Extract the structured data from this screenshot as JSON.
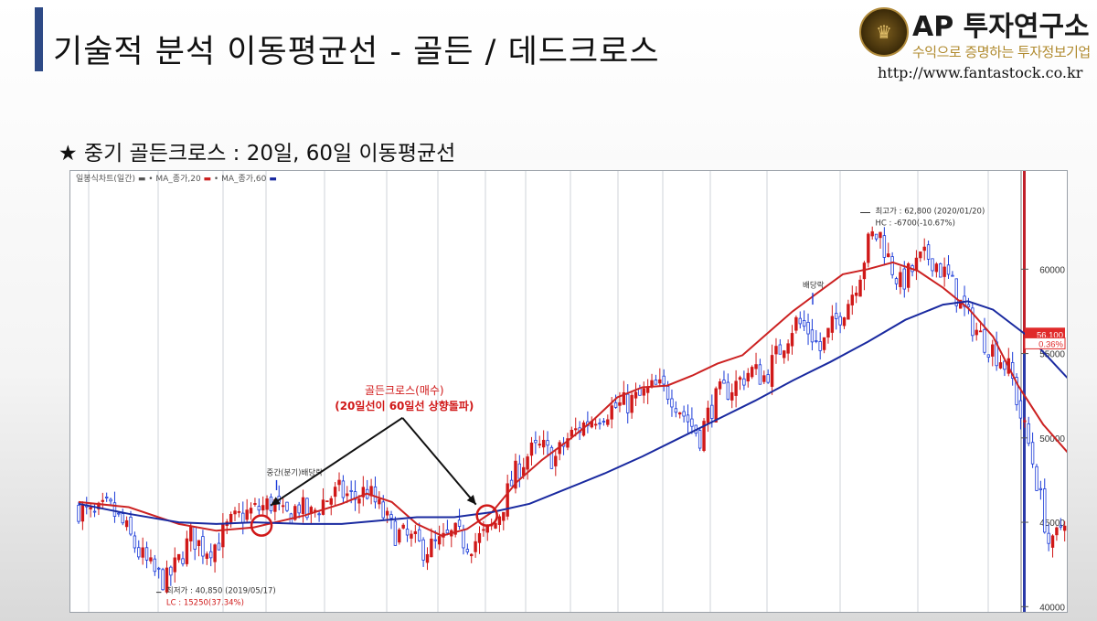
{
  "header": {
    "title": "기술적 분석 이동평균선 - 골든 / 데드크로스",
    "subtitle": "★ 중기 골든크로스 : 20일, 60일 이동평균선"
  },
  "logo": {
    "brand": "AP 투자연구소",
    "tagline": "수익으로 증명하는 투자정보기업",
    "url": "http://www.fantastock.co.kr"
  },
  "colors": {
    "title_accent": "#2e4a86",
    "ma20": "#cc2222",
    "ma60": "#1a2aa0",
    "candle_up": "#d01818",
    "candle_down": "#1a3ad8",
    "annotation_red": "#d01818"
  },
  "chart_data": {
    "type": "candlestick",
    "legend": [
      "일봉식차트(일간)",
      "MA_종가,20",
      "MA_종가,60"
    ],
    "y_axis": {
      "side": "right",
      "ticks": [
        40000,
        45000,
        50000,
        55000,
        60000
      ],
      "tick_labels": [
        "40000",
        "45000",
        "50000",
        "55000",
        "60000"
      ],
      "ylim": [
        39800,
        65600
      ]
    },
    "n_days": 370,
    "series": [
      {
        "name": "MA_종가,20",
        "color": "#cc2222",
        "points": [
          [
            0,
            46200
          ],
          [
            20,
            45900
          ],
          [
            40,
            44900
          ],
          [
            55,
            44500
          ],
          [
            70,
            44700
          ],
          [
            90,
            45400
          ],
          [
            105,
            46100
          ],
          [
            115,
            46700
          ],
          [
            125,
            46200
          ],
          [
            135,
            44900
          ],
          [
            145,
            44200
          ],
          [
            155,
            44600
          ],
          [
            165,
            45600
          ],
          [
            175,
            47400
          ],
          [
            185,
            48700
          ],
          [
            195,
            49800
          ],
          [
            205,
            51000
          ],
          [
            215,
            52400
          ],
          [
            225,
            53000
          ],
          [
            235,
            53100
          ],
          [
            245,
            53700
          ],
          [
            255,
            54400
          ],
          [
            265,
            54900
          ],
          [
            275,
            56200
          ],
          [
            285,
            57500
          ],
          [
            295,
            58600
          ],
          [
            305,
            59700
          ],
          [
            315,
            60000
          ],
          [
            325,
            60400
          ],
          [
            335,
            59900
          ],
          [
            345,
            58900
          ],
          [
            355,
            57700
          ],
          [
            365,
            56000
          ],
          [
            375,
            53100
          ],
          [
            385,
            50800
          ],
          [
            395,
            49100
          ],
          [
            405,
            48400
          ],
          [
            415,
            48800
          ],
          [
            425,
            49000
          ],
          [
            435,
            49200
          ],
          [
            445,
            49400
          ],
          [
            455,
            50400
          ],
          [
            465,
            51200
          ],
          [
            475,
            51800
          ],
          [
            485,
            52100
          ],
          [
            495,
            52400
          ],
          [
            505,
            53300
          ],
          [
            515,
            53700
          ],
          [
            525,
            53900
          ],
          [
            535,
            54600
          ],
          [
            545,
            55400
          ],
          [
            555,
            56500
          ],
          [
            565,
            57700
          ],
          [
            575,
            57600
          ],
          [
            580,
            57200
          ]
        ]
      },
      {
        "name": "MA_종가,60",
        "color": "#1a2aa0",
        "points": [
          [
            0,
            46100
          ],
          [
            20,
            45500
          ],
          [
            40,
            45000
          ],
          [
            55,
            44900
          ],
          [
            70,
            45000
          ],
          [
            90,
            44900
          ],
          [
            105,
            44900
          ],
          [
            120,
            45100
          ],
          [
            135,
            45300
          ],
          [
            150,
            45300
          ],
          [
            165,
            45600
          ],
          [
            180,
            46100
          ],
          [
            195,
            47000
          ],
          [
            210,
            47900
          ],
          [
            225,
            48900
          ],
          [
            240,
            50000
          ],
          [
            255,
            51100
          ],
          [
            270,
            52200
          ],
          [
            285,
            53400
          ],
          [
            300,
            54500
          ],
          [
            315,
            55700
          ],
          [
            330,
            57000
          ],
          [
            345,
            57900
          ],
          [
            355,
            58100
          ],
          [
            365,
            57600
          ],
          [
            380,
            55900
          ],
          [
            395,
            53500
          ],
          [
            410,
            51300
          ],
          [
            425,
            49900
          ],
          [
            440,
            49200
          ],
          [
            455,
            49500
          ],
          [
            470,
            50300
          ],
          [
            485,
            51200
          ],
          [
            500,
            52000
          ],
          [
            515,
            52800
          ],
          [
            530,
            53600
          ],
          [
            545,
            54100
          ],
          [
            560,
            54900
          ],
          [
            575,
            55800
          ],
          [
            580,
            55700
          ]
        ]
      }
    ],
    "candle_path": [
      [
        0,
        45800
      ],
      [
        6,
        45300
      ],
      [
        12,
        45900
      ],
      [
        18,
        44800
      ],
      [
        24,
        43200
      ],
      [
        30,
        42000
      ],
      [
        35,
        41500
      ],
      [
        40,
        42700
      ],
      [
        45,
        44200
      ],
      [
        50,
        43400
      ],
      [
        55,
        43700
      ],
      [
        60,
        44800
      ],
      [
        65,
        45400
      ],
      [
        72,
        45800
      ],
      [
        78,
        46200
      ],
      [
        82,
        45200
      ],
      [
        88,
        46000
      ],
      [
        92,
        45300
      ],
      [
        98,
        46300
      ],
      [
        104,
        46800
      ],
      [
        110,
        46400
      ],
      [
        115,
        46900
      ],
      [
        120,
        45800
      ],
      [
        126,
        44400
      ],
      [
        132,
        44000
      ],
      [
        138,
        43400
      ],
      [
        144,
        43700
      ],
      [
        150,
        44300
      ],
      [
        156,
        43700
      ],
      [
        162,
        44200
      ],
      [
        166,
        44800
      ],
      [
        170,
        46300
      ],
      [
        175,
        48100
      ],
      [
        180,
        49100
      ],
      [
        185,
        49400
      ],
      [
        190,
        48700
      ],
      [
        195,
        49900
      ],
      [
        200,
        50600
      ],
      [
        206,
        51300
      ],
      [
        212,
        51700
      ],
      [
        218,
        52000
      ],
      [
        224,
        52400
      ],
      [
        230,
        53000
      ],
      [
        236,
        52700
      ],
      [
        242,
        51300
      ],
      [
        248,
        50100
      ],
      [
        252,
        51700
      ],
      [
        256,
        52600
      ],
      [
        262,
        53100
      ],
      [
        268,
        54000
      ],
      [
        274,
        53600
      ],
      [
        280,
        55300
      ],
      [
        286,
        56900
      ],
      [
        292,
        56300
      ],
      [
        296,
        55200
      ],
      [
        302,
        56900
      ],
      [
        308,
        58300
      ],
      [
        312,
        59900
      ],
      [
        316,
        61900
      ],
      [
        320,
        62000
      ],
      [
        324,
        60300
      ],
      [
        328,
        59100
      ],
      [
        332,
        59800
      ],
      [
        336,
        60500
      ],
      [
        340,
        60800
      ],
      [
        344,
        60000
      ],
      [
        348,
        59300
      ],
      [
        352,
        57900
      ],
      [
        356,
        56900
      ],
      [
        360,
        56000
      ],
      [
        364,
        55400
      ],
      [
        368,
        54700
      ],
      [
        372,
        53900
      ],
      [
        376,
        51300
      ],
      [
        380,
        49200
      ],
      [
        384,
        46300
      ],
      [
        388,
        43200
      ],
      [
        392,
        44800
      ],
      [
        396,
        46300
      ],
      [
        400,
        47800
      ],
      [
        404,
        49300
      ],
      [
        408,
        49700
      ],
      [
        412,
        49000
      ],
      [
        416,
        48700
      ],
      [
        420,
        49300
      ],
      [
        424,
        49600
      ],
      [
        428,
        49000
      ],
      [
        432,
        48300
      ],
      [
        436,
        48700
      ],
      [
        440,
        49200
      ],
      [
        444,
        49700
      ],
      [
        448,
        50200
      ],
      [
        452,
        50700
      ],
      [
        456,
        52900
      ],
      [
        460,
        55000
      ],
      [
        463,
        55800
      ],
      [
        466,
        54700
      ],
      [
        470,
        53000
      ],
      [
        474,
        52100
      ],
      [
        478,
        51700
      ],
      [
        482,
        52300
      ],
      [
        486,
        52600
      ],
      [
        490,
        52100
      ],
      [
        494,
        53100
      ],
      [
        498,
        53500
      ],
      [
        502,
        52900
      ],
      [
        506,
        53700
      ],
      [
        510,
        54400
      ],
      [
        514,
        54100
      ],
      [
        518,
        54900
      ],
      [
        522,
        54300
      ],
      [
        526,
        55100
      ],
      [
        530,
        54500
      ],
      [
        534,
        55800
      ],
      [
        538,
        56900
      ],
      [
        542,
        58900
      ],
      [
        546,
        59300
      ],
      [
        550,
        58000
      ],
      [
        554,
        57500
      ],
      [
        558,
        57900
      ],
      [
        562,
        58500
      ],
      [
        566,
        58000
      ],
      [
        570,
        57300
      ],
      [
        574,
        56400
      ],
      [
        578,
        55900
      ],
      [
        580,
        56100
      ]
    ],
    "annotations": [
      {
        "text": "중간(분기)배당락",
        "x": 75,
        "y": 47800
      },
      {
        "text": "배당락",
        "x": 289,
        "y": 58900
      },
      {
        "text": "최고가 : 62,800 (2020/01/20)",
        "x": 318,
        "y": 63300
      },
      {
        "text": "HC : -6700(-10.67%)",
        "x": 318,
        "y": 62600
      },
      {
        "text": "최저가 : 40,850 (2019/05/17)",
        "x": 35,
        "y": 40800
      },
      {
        "text": "LC : 15250(37.34%)",
        "x": 35,
        "y": 40100
      },
      {
        "text": "56,100",
        "x": 580,
        "y": 56100
      },
      {
        "text": "0.36%",
        "x": 580,
        "y": 55550
      }
    ],
    "callouts": [
      {
        "title": "골든크로스(매수)",
        "detail": "(20일선이 60일선 상향돌파)",
        "cross_x": [
          73,
          163
        ],
        "label_x": 130,
        "label_y": 52600
      },
      {
        "title": "골든크로스(매수)",
        "detail": "(20일선이 60일선 상향돌파)",
        "cross_x": [
          446
        ],
        "label_x": 446,
        "label_y": 43300
      }
    ]
  }
}
